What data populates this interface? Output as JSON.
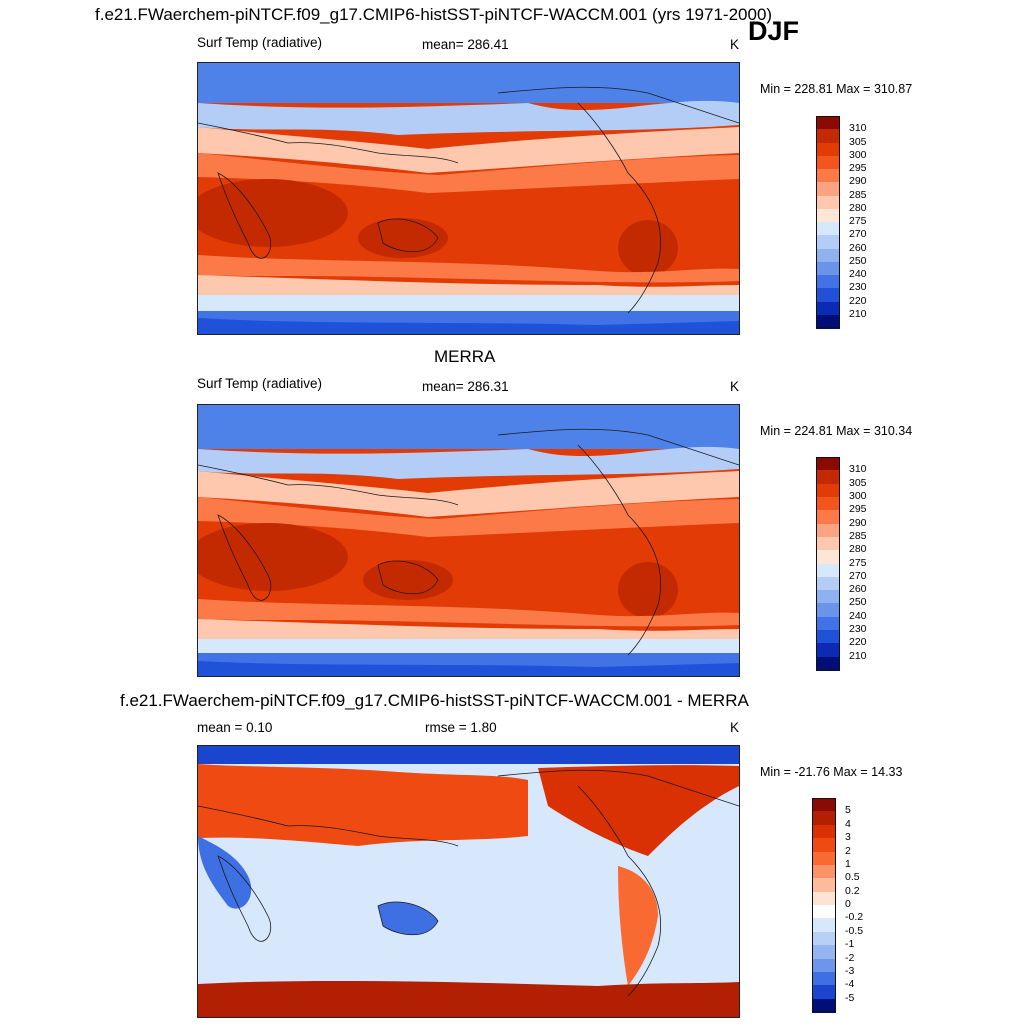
{
  "header": {
    "title": "f.e21.FWaerchem-piNTCF.f09_g17.CMIP6-histSST-piNTCF-WACCM.001 (yrs 1971-2000)",
    "season": "DJF"
  },
  "panels": [
    {
      "variable": "Surf Temp (radiative)",
      "stat_text": "mean= 286.41",
      "units": "K",
      "minmax": "Min = 228.81 Max = 310.87"
    },
    {
      "title": "MERRA",
      "variable": "Surf Temp (radiative)",
      "stat_text": "mean= 286.31",
      "units": "K",
      "minmax": "Min = 224.81 Max = 310.34"
    },
    {
      "title": "f.e21.FWaerchem-piNTCF.f09_g17.CMIP6-histSST-piNTCF-WACCM.001 - MERRA",
      "mean_text": "mean =   0.10",
      "rmse_text": "rmse =   1.80",
      "units": "K",
      "minmax": "Min = -21.76 Max =  14.33"
    }
  ],
  "chart_data": [
    {
      "type": "heatmap",
      "title": "f.e21.FWaerchem-piNTCF.f09_g17.CMIP6-histSST-piNTCF-WACCM.001 (yrs 1971-2000)",
      "variable": "Surf Temp (radiative)",
      "units": "K",
      "mean": 286.41,
      "min": 228.81,
      "max": 310.87,
      "colorbar_levels": [
        "310",
        "305",
        "300",
        "295",
        "290",
        "285",
        "280",
        "275",
        "270",
        "260",
        "250",
        "240",
        "230",
        "220",
        "210"
      ],
      "colorbar_colors": [
        "#8c0a04",
        "#c42a02",
        "#e23b06",
        "#f2561d",
        "#fb7a48",
        "#fca382",
        "#fdc8ae",
        "#fee6d6",
        "#d6e8fc",
        "#b3cdf6",
        "#8fb1f0",
        "#6a94ea",
        "#4173e6",
        "#1f52d8",
        "#0b2bb5",
        "#000e7a"
      ]
    },
    {
      "type": "heatmap",
      "title": "MERRA",
      "variable": "Surf Temp (radiative)",
      "units": "K",
      "mean": 286.31,
      "min": 224.81,
      "max": 310.34,
      "colorbar_levels": [
        "310",
        "305",
        "300",
        "295",
        "290",
        "285",
        "280",
        "275",
        "270",
        "260",
        "250",
        "240",
        "230",
        "220",
        "210"
      ],
      "colorbar_colors": [
        "#8c0a04",
        "#c42a02",
        "#e23b06",
        "#f2561d",
        "#fb7a48",
        "#fca382",
        "#fdc8ae",
        "#fee6d6",
        "#d6e8fc",
        "#b3cdf6",
        "#8fb1f0",
        "#6a94ea",
        "#4173e6",
        "#1f52d8",
        "#0b2bb5",
        "#000e7a"
      ]
    },
    {
      "type": "heatmap",
      "title": "f.e21.FWaerchem-piNTCF.f09_g17.CMIP6-histSST-piNTCF-WACCM.001 - MERRA",
      "units": "K",
      "mean": 0.1,
      "rmse": 1.8,
      "min": -21.76,
      "max": 14.33,
      "colorbar_levels": [
        "5",
        "4",
        "3",
        "2",
        "1",
        "0.5",
        "0.2",
        "0",
        "-0.2",
        "-0.5",
        "-1",
        "-2",
        "-3",
        "-4",
        "-5"
      ],
      "colorbar_colors": [
        "#8c0a04",
        "#b31f02",
        "#d93004",
        "#ee4a12",
        "#f86a32",
        "#fb9366",
        "#fdbb9c",
        "#fee3d2",
        "#ffffff",
        "#d8e8fc",
        "#b8d0f7",
        "#94b5f1",
        "#6b96ea",
        "#3f70e3",
        "#1a45cf",
        "#000e7a"
      ]
    }
  ]
}
